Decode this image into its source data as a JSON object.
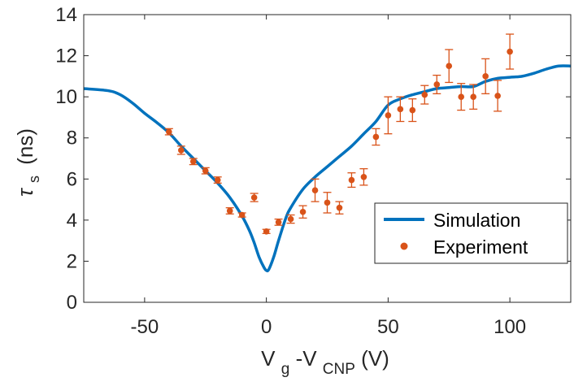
{
  "chart_data": {
    "type": "line",
    "xlabel": {
      "main": "V",
      "sub1": "g",
      "mid": " -V",
      "sub2": "CNP",
      "tail": "(V)"
    },
    "ylabel": {
      "symbol": "τ",
      "sub": "s",
      "unit": "(ns)"
    },
    "xlim": [
      -75,
      125
    ],
    "ylim": [
      0,
      14
    ],
    "xticks": [
      -50,
      0,
      50,
      100
    ],
    "yticks": [
      0,
      2,
      4,
      6,
      8,
      10,
      12,
      14
    ],
    "legend": {
      "position": "bottom-right",
      "entries": [
        "Simulation",
        "Experiment"
      ]
    },
    "colors": {
      "simulation": "#0072BD",
      "experiment": "#D95319"
    },
    "series": [
      {
        "name": "Simulation",
        "type": "line",
        "x": [
          -75,
          -65,
          -60,
          -55,
          -50,
          -45,
          -40,
          -35,
          -30,
          -25,
          -20,
          -15,
          -10,
          -7,
          -5,
          -3,
          -1,
          0,
          1,
          3,
          5,
          8,
          10,
          15,
          20,
          25,
          30,
          35,
          40,
          45,
          50,
          55,
          60,
          65,
          70,
          75,
          80,
          85,
          90,
          95,
          100,
          105,
          110,
          115,
          120,
          125
        ],
        "y": [
          10.4,
          10.3,
          10.1,
          9.7,
          9.2,
          8.75,
          8.25,
          7.6,
          7.0,
          6.4,
          5.8,
          5.1,
          4.2,
          3.5,
          2.9,
          2.2,
          1.7,
          1.55,
          1.6,
          2.2,
          3.0,
          4.1,
          4.6,
          5.5,
          6.1,
          6.6,
          7.1,
          7.6,
          8.2,
          8.8,
          9.6,
          9.9,
          10.1,
          10.25,
          10.4,
          10.45,
          10.5,
          10.5,
          10.75,
          10.9,
          10.95,
          11.0,
          11.15,
          11.35,
          11.5,
          11.5
        ]
      },
      {
        "name": "Experiment",
        "type": "scatter",
        "x": [
          -40,
          -35,
          -30,
          -25,
          -20,
          -15,
          -10,
          -5,
          0,
          5,
          10,
          15,
          20,
          25,
          30,
          35,
          40,
          45,
          50,
          55,
          60,
          65,
          70,
          75,
          80,
          85,
          90,
          95,
          100
        ],
        "y": [
          8.3,
          7.4,
          6.85,
          6.4,
          5.95,
          4.45,
          4.25,
          5.1,
          3.45,
          3.9,
          4.05,
          4.4,
          5.45,
          4.85,
          4.6,
          5.95,
          6.1,
          8.05,
          9.1,
          9.4,
          9.35,
          10.1,
          10.6,
          11.5,
          10.0,
          10.0,
          11.0,
          10.05,
          12.2
        ],
        "err": [
          0.15,
          0.2,
          0.15,
          0.15,
          0.15,
          0.15,
          0.1,
          0.2,
          0.1,
          0.15,
          0.2,
          0.3,
          0.55,
          0.5,
          0.3,
          0.35,
          0.4,
          0.4,
          0.9,
          0.6,
          0.55,
          0.45,
          0.45,
          0.8,
          0.65,
          0.6,
          0.85,
          0.75,
          0.85
        ]
      }
    ]
  }
}
